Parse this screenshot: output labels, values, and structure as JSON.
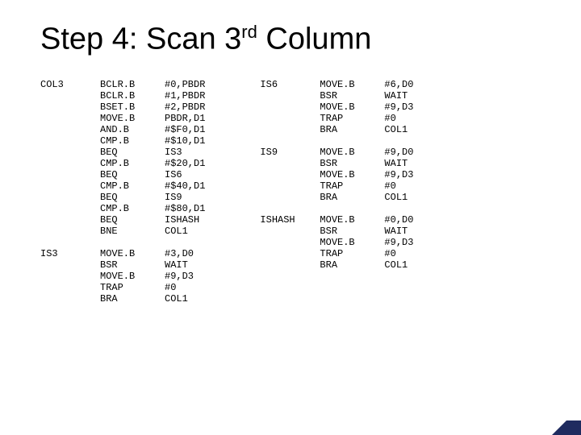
{
  "title_parts": {
    "a": "Step 4: Scan 3",
    "sup": "rd",
    "b": " Column"
  },
  "left": [
    {
      "label": "COL3",
      "ops": "BCLR.B\nBCLR.B\nBSET.B\nMOVE.B\nAND.B\nCMP.B\nBEQ\nCMP.B\nBEQ\nCMP.B\nBEQ\nCMP.B\nBEQ\nBNE",
      "args": "#0,PBDR\n#1,PBDR\n#2,PBDR\nPBDR,D1\n#$F0,D1\n#$10,D1\nIS3\n#$20,D1\nIS6\n#$40,D1\nIS9\n#$80,D1\nISHASH\nCOL1"
    },
    {
      "label": "IS3",
      "ops": "MOVE.B\nBSR\nMOVE.B\nTRAP\nBRA",
      "args": "#3,D0\nWAIT\n#9,D3\n#0\nCOL1"
    }
  ],
  "right": [
    {
      "label": "IS6",
      "ops": "MOVE.B\nBSR\nMOVE.B\nTRAP\nBRA",
      "args": "#6,D0\nWAIT\n#9,D3\n#0\nCOL1"
    },
    {
      "label": "IS9",
      "ops": "MOVE.B\nBSR\nMOVE.B\nTRAP\nBRA",
      "args": "#9,D0\nWAIT\n#9,D3\n#0\nCOL1"
    },
    {
      "label": "ISHASH",
      "ops": "MOVE.B\nBSR\nMOVE.B\nTRAP\nBRA",
      "args": "#0,D0\nWAIT\n#9,D3\n#0\nCOL1"
    }
  ]
}
